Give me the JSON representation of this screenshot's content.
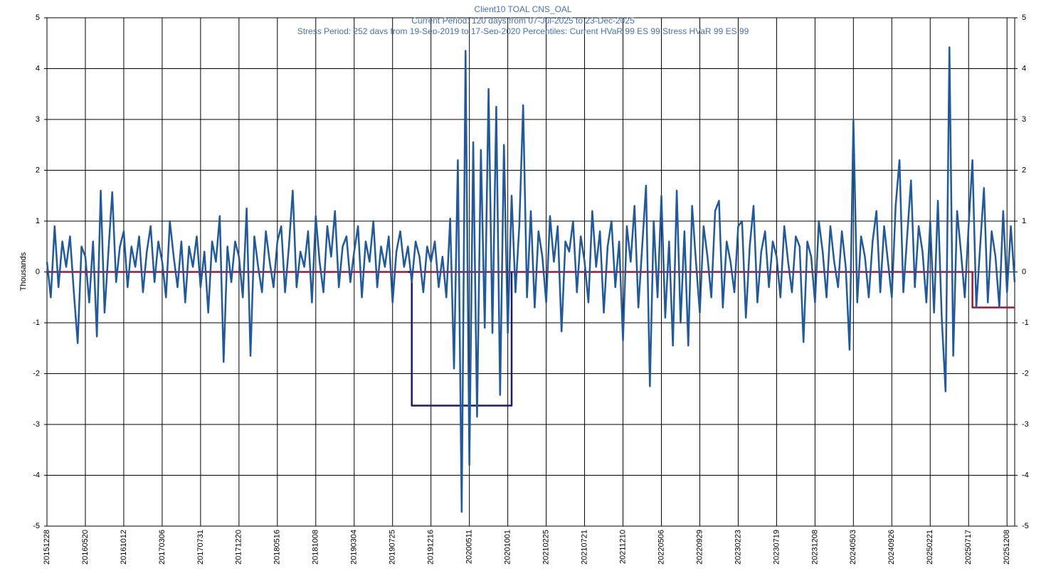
{
  "chart_data": {
    "type": "line",
    "title": "Client10 TOAL CNS_OAL",
    "subtitle": "Current Period:  120 days from 07-Jul-2025 to 23-Dec-2025",
    "annotation": "Stress Period: 252 days from 19-Sep-2019 to 17-Sep-2020  Percentiles:  Current HVaR  99    ES  99    Stress HVaR  99    ES  99",
    "y_label": "Thousands",
    "ylim": [
      -5,
      5
    ],
    "yticks": [
      -5,
      -4,
      -3,
      -2,
      -1,
      0,
      1,
      2,
      3,
      4,
      5
    ],
    "grid": true,
    "categories": [
      "20151228",
      null,
      null,
      null,
      null,
      null,
      null,
      null,
      null,
      null,
      "20160520",
      null,
      null,
      null,
      null,
      null,
      null,
      null,
      null,
      null,
      "20161012",
      null,
      null,
      null,
      null,
      null,
      null,
      null,
      null,
      null,
      "20170306",
      null,
      null,
      null,
      null,
      null,
      null,
      null,
      null,
      null,
      "20170731",
      null,
      null,
      null,
      null,
      null,
      null,
      null,
      null,
      null,
      "20171220",
      null,
      null,
      null,
      null,
      null,
      null,
      null,
      null,
      null,
      "20180516",
      null,
      null,
      null,
      null,
      null,
      null,
      null,
      null,
      null,
      "20181008",
      null,
      null,
      null,
      null,
      null,
      null,
      null,
      null,
      null,
      "20190304",
      null,
      null,
      null,
      null,
      null,
      null,
      null,
      null,
      null,
      "20190725",
      null,
      null,
      null,
      null,
      null,
      null,
      null,
      null,
      null,
      "20191216",
      null,
      null,
      null,
      null,
      null,
      null,
      null,
      null,
      null,
      "20200511",
      null,
      null,
      null,
      null,
      null,
      null,
      null,
      null,
      null,
      "20201001",
      null,
      null,
      null,
      null,
      null,
      null,
      null,
      null,
      null,
      "20210225",
      null,
      null,
      null,
      null,
      null,
      null,
      null,
      null,
      null,
      "20210721",
      null,
      null,
      null,
      null,
      null,
      null,
      null,
      null,
      null,
      "20211210",
      null,
      null,
      null,
      null,
      null,
      null,
      null,
      null,
      null,
      "20220506",
      null,
      null,
      null,
      null,
      null,
      null,
      null,
      null,
      null,
      "20220929",
      null,
      null,
      null,
      null,
      null,
      null,
      null,
      null,
      null,
      "20230223",
      null,
      null,
      null,
      null,
      null,
      null,
      null,
      null,
      null,
      "20230719",
      null,
      null,
      null,
      null,
      null,
      null,
      null,
      null,
      null,
      "20231208",
      null,
      null,
      null,
      null,
      null,
      null,
      null,
      null,
      null,
      "20240503",
      null,
      null,
      null,
      null,
      null,
      null,
      null,
      null,
      null,
      "20240926",
      null,
      null,
      null,
      null,
      null,
      null,
      null,
      null,
      null,
      "20250221",
      null,
      null,
      null,
      null,
      null,
      null,
      null,
      null,
      null,
      "20250717",
      null,
      null,
      null,
      null,
      null,
      null,
      null,
      null,
      null,
      "20251208",
      null,
      null
    ],
    "series": [
      {
        "color": "#a0163a",
        "step": true,
        "values": [
          0,
          0,
          0,
          0,
          0,
          0,
          0,
          0,
          0,
          0,
          0,
          0,
          0,
          0,
          0,
          0,
          0,
          0,
          0,
          0,
          0,
          0,
          0,
          0,
          0,
          0,
          0,
          0,
          0,
          0,
          0,
          0,
          0,
          0,
          0,
          0,
          0,
          0,
          0,
          0,
          0,
          0,
          0,
          0,
          0,
          0,
          0,
          0,
          0,
          0,
          0,
          0,
          0,
          0,
          0,
          0,
          0,
          0,
          0,
          0,
          0,
          0,
          0,
          0,
          0,
          0,
          0,
          0,
          0,
          0,
          0,
          0,
          0,
          0,
          0,
          0,
          0,
          0,
          0,
          0,
          0,
          0,
          0,
          0,
          0,
          0,
          0,
          0,
          0,
          0,
          0,
          0,
          0,
          0,
          0,
          0,
          0,
          0,
          0,
          0,
          0,
          0,
          0,
          0,
          0,
          0,
          0,
          0,
          0,
          0,
          0,
          0,
          0,
          0,
          0,
          0,
          0,
          0,
          0,
          0,
          0,
          0,
          0,
          0,
          0,
          0,
          0,
          0,
          0,
          0,
          0,
          0,
          0,
          0,
          0,
          0,
          0,
          0,
          0,
          0,
          0,
          0,
          0,
          0,
          0,
          0,
          0,
          0,
          0,
          0,
          0,
          0,
          0,
          0,
          0,
          0,
          0,
          0,
          0,
          0,
          0,
          0,
          0,
          0,
          0,
          0,
          0,
          0,
          0,
          0,
          0,
          0,
          0,
          0,
          0,
          0,
          0,
          0,
          0,
          0,
          0,
          0,
          0,
          0,
          0,
          0,
          0,
          0,
          0,
          0,
          0,
          0,
          0,
          0,
          0,
          0,
          0,
          0,
          0,
          0,
          0,
          0,
          0,
          0,
          0,
          0,
          0,
          0,
          0,
          0,
          0,
          0,
          0,
          0,
          0,
          0,
          0,
          0,
          0,
          0,
          0,
          0,
          0,
          0,
          0,
          0,
          0,
          0,
          0,
          0,
          0,
          0,
          0,
          0,
          0,
          0,
          0,
          0,
          0,
          0,
          0,
          -0.7,
          -0.7,
          -0.7,
          -0.7,
          -0.7,
          -0.7,
          -0.7,
          -0.7,
          -0.7,
          -0.7,
          -0.7,
          -0.7
        ]
      },
      {
        "color": "#1a1a6e",
        "step": true,
        "values": [
          null,
          null,
          null,
          null,
          null,
          null,
          null,
          null,
          null,
          null,
          null,
          null,
          null,
          null,
          null,
          null,
          null,
          null,
          null,
          null,
          null,
          null,
          null,
          null,
          null,
          null,
          null,
          null,
          null,
          null,
          null,
          null,
          null,
          null,
          null,
          null,
          null,
          null,
          null,
          null,
          null,
          null,
          null,
          null,
          null,
          null,
          null,
          null,
          null,
          null,
          null,
          null,
          null,
          null,
          null,
          null,
          null,
          null,
          null,
          null,
          null,
          null,
          null,
          null,
          null,
          null,
          null,
          null,
          null,
          null,
          null,
          null,
          null,
          null,
          null,
          null,
          null,
          null,
          null,
          null,
          null,
          null,
          null,
          null,
          null,
          null,
          null,
          null,
          null,
          null,
          null,
          null,
          null,
          null,
          0,
          -2.63,
          -2.63,
          -2.63,
          -2.63,
          -2.63,
          -2.63,
          -2.63,
          -2.63,
          -2.63,
          -2.63,
          -2.63,
          -2.63,
          -2.63,
          -2.63,
          -2.63,
          -2.63,
          -2.63,
          -2.63,
          -2.63,
          -2.63,
          -2.63,
          -2.63,
          -2.63,
          -2.63,
          -2.63,
          -2.63,
          0,
          null,
          null,
          null,
          null,
          null,
          null,
          null,
          null,
          null,
          null,
          null,
          null,
          null,
          null,
          null,
          null,
          null,
          null,
          null,
          null,
          null,
          null,
          null,
          null,
          null,
          null,
          null,
          null,
          null,
          null,
          null,
          null,
          null,
          null,
          null,
          null,
          null,
          null,
          null,
          null,
          null,
          null,
          null,
          null,
          null,
          null,
          null,
          null,
          null,
          null,
          null,
          null,
          null,
          null,
          null,
          null,
          null,
          null,
          null,
          null,
          null,
          null,
          null,
          null,
          null,
          null,
          null,
          null,
          null,
          null,
          null,
          null,
          null,
          null,
          null,
          null,
          null,
          null,
          null,
          null,
          null,
          null,
          null,
          null,
          null,
          null,
          null,
          null,
          null,
          null,
          null,
          null,
          null,
          null,
          null,
          null,
          null,
          null,
          null,
          null,
          null,
          null,
          null,
          null,
          null,
          null,
          null,
          null,
          null,
          null,
          null,
          null,
          null,
          null,
          null,
          null,
          null,
          null,
          null,
          null,
          null,
          null,
          null,
          null,
          null,
          null,
          null,
          null,
          null,
          null,
          null
        ]
      },
      {
        "color": "#1f5aa0",
        "values": [
          0.2,
          -0.5,
          0.9,
          -0.3,
          0.6,
          0.1,
          0.7,
          -0.4,
          -1.4,
          0.5,
          0.3,
          -0.6,
          0.6,
          -1.27,
          1.6,
          -0.8,
          0.4,
          1.57,
          -0.2,
          0.5,
          0.8,
          -0.3,
          0.5,
          0.1,
          0.7,
          -0.4,
          0.4,
          0.9,
          -0.2,
          0.6,
          0.2,
          -0.5,
          1.0,
          0.3,
          -0.3,
          0.6,
          -0.6,
          0.5,
          0.1,
          0.7,
          -0.3,
          0.4,
          -0.8,
          0.6,
          0.2,
          1.1,
          -1.77,
          0.5,
          -0.2,
          0.6,
          0.3,
          -0.5,
          1.25,
          -1.65,
          0.7,
          0.1,
          -0.4,
          0.8,
          0.2,
          -0.3,
          0.6,
          0.9,
          -0.4,
          0.5,
          1.6,
          -0.3,
          0.4,
          0.1,
          0.8,
          -0.6,
          1.1,
          0.2,
          -0.4,
          0.9,
          0.3,
          1.2,
          -0.3,
          0.5,
          0.7,
          -0.2,
          0.4,
          0.9,
          -0.5,
          0.6,
          0.2,
          1.0,
          -0.3,
          0.5,
          0.1,
          0.7,
          -0.6,
          0.4,
          0.8,
          0.1,
          0.5,
          -0.2,
          0.6,
          0.3,
          -0.4,
          0.5,
          0.2,
          0.6,
          -0.3,
          0.3,
          -0.5,
          1.05,
          -1.9,
          2.2,
          -4.72,
          4.35,
          -3.8,
          2.55,
          -2.85,
          2.4,
          -1.1,
          3.6,
          -1.2,
          3.25,
          -2.42,
          2.5,
          -1.2,
          1.5,
          -0.4,
          0.9,
          3.28,
          -0.5,
          1.2,
          -0.7,
          0.8,
          0.3,
          -0.6,
          1.1,
          0.2,
          0.9,
          -1.17,
          0.6,
          0.4,
          1.0,
          -0.4,
          0.7,
          0.2,
          -0.6,
          1.2,
          0.1,
          0.8,
          -0.8,
          0.5,
          1.0,
          -0.3,
          0.6,
          -1.35,
          0.9,
          0.2,
          1.3,
          -0.7,
          0.5,
          1.7,
          -2.25,
          1.0,
          -0.5,
          1.5,
          -0.9,
          0.6,
          -1.45,
          1.6,
          -1.0,
          0.8,
          -1.45,
          1.3,
          0.2,
          -0.8,
          0.9,
          0.3,
          -0.5,
          1.2,
          1.4,
          -0.7,
          0.6,
          0.2,
          -0.4,
          0.9,
          1.0,
          -0.9,
          0.5,
          1.3,
          -0.6,
          0.4,
          0.8,
          -0.3,
          0.6,
          0.3,
          -0.5,
          0.9,
          0.2,
          -0.4,
          0.7,
          0.5,
          -1.38,
          0.6,
          0.3,
          -0.6,
          1.0,
          0.4,
          -0.5,
          0.9,
          0.2,
          -0.3,
          0.8,
          0.1,
          -1.53,
          3.0,
          -0.6,
          0.7,
          0.3,
          -0.5,
          0.6,
          1.2,
          -0.4,
          0.9,
          0.2,
          -0.5,
          1.3,
          2.2,
          -0.4,
          0.7,
          1.8,
          -0.3,
          0.9,
          0.4,
          -0.6,
          1.0,
          -0.8,
          1.4,
          -0.9,
          -2.35,
          4.42,
          -1.65,
          1.2,
          0.4,
          -0.5,
          0.9,
          2.2,
          -0.7,
          0.5,
          1.65,
          -0.6,
          0.8,
          0.3,
          -0.7,
          1.2,
          -0.4,
          0.9,
          -0.2
        ]
      }
    ]
  }
}
